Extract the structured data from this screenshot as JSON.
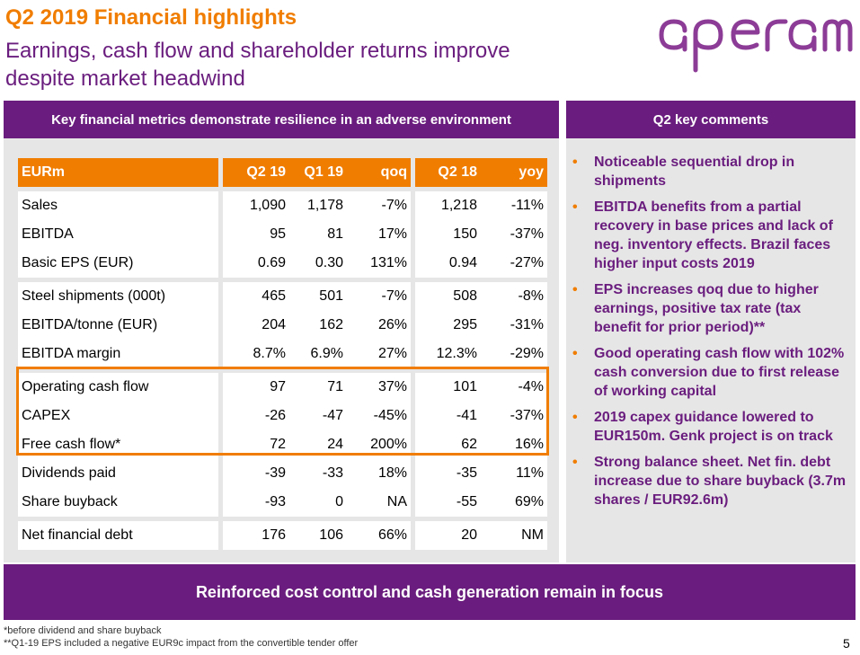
{
  "header": {
    "title": "Q2 2019 Financial highlights",
    "subtitle": "Earnings, cash flow and shareholder returns improve despite market headwind",
    "logo_text": "aperam"
  },
  "left_panel": {
    "header": "Key financial metrics demonstrate resilience in an adverse environment",
    "columns": [
      "EURm",
      "Q2 19",
      "Q1 19",
      "qoq",
      "Q2 18",
      "yoy"
    ],
    "groups": [
      [
        [
          "Sales",
          "1,090",
          "1,178",
          "-7%",
          "1,218",
          "-11%"
        ],
        [
          "EBITDA",
          "95",
          "81",
          "17%",
          "150",
          "-37%"
        ],
        [
          "Basic EPS (EUR)",
          "0.69",
          "0.30",
          "131%",
          "0.94",
          "-27%"
        ]
      ],
      [
        [
          "Steel shipments (000t)",
          "465",
          "501",
          "-7%",
          "508",
          "-8%"
        ],
        [
          "EBITDA/tonne (EUR)",
          "204",
          "162",
          "26%",
          "295",
          "-31%"
        ],
        [
          "EBITDA margin",
          "8.7%",
          "6.9%",
          "27%",
          "12.3%",
          "-29%"
        ]
      ],
      [
        [
          "Operating cash flow",
          "97",
          "71",
          "37%",
          "101",
          "-4%"
        ],
        [
          "CAPEX",
          "-26",
          "-47",
          "-45%",
          "-41",
          "-37%"
        ],
        [
          "Free cash flow*",
          "72",
          "24",
          "200%",
          "62",
          "16%"
        ],
        [
          "Dividends paid",
          "-39",
          "-33",
          "18%",
          "-35",
          "11%"
        ],
        [
          "Share buyback",
          "-93",
          "0",
          "NA",
          "-55",
          "69%"
        ]
      ],
      [
        [
          "Net financial debt",
          "176",
          "106",
          "66%",
          "20",
          "NM"
        ]
      ]
    ]
  },
  "right_panel": {
    "header": "Q2 key comments",
    "bullet": "•",
    "comments": [
      "Noticeable sequential drop in shipments",
      "EBITDA benefits from a partial recovery in base prices and lack of neg. inventory effects. Brazil faces higher input costs 2019",
      "EPS increases qoq due to higher earnings, positive tax rate (tax benefit for prior period)**",
      "Good operating cash flow with 102% cash conversion due to first release of working capital",
      "2019 capex guidance lowered to EUR150m. Genk project is on track",
      "Strong balance sheet. Net fin. debt increase due to share buyback (3.7m shares / EUR92.6m)"
    ]
  },
  "banner": "Reinforced cost control and cash generation remain in focus",
  "footnotes": [
    "*before dividend and share buyback",
    "**Q1-19 EPS included a negative EUR9c impact from the convertible tender offer"
  ],
  "page_number": "5",
  "colors": {
    "purple": "#6a1d7e",
    "orange": "#f07d00",
    "panel": "#e6e6e6"
  }
}
